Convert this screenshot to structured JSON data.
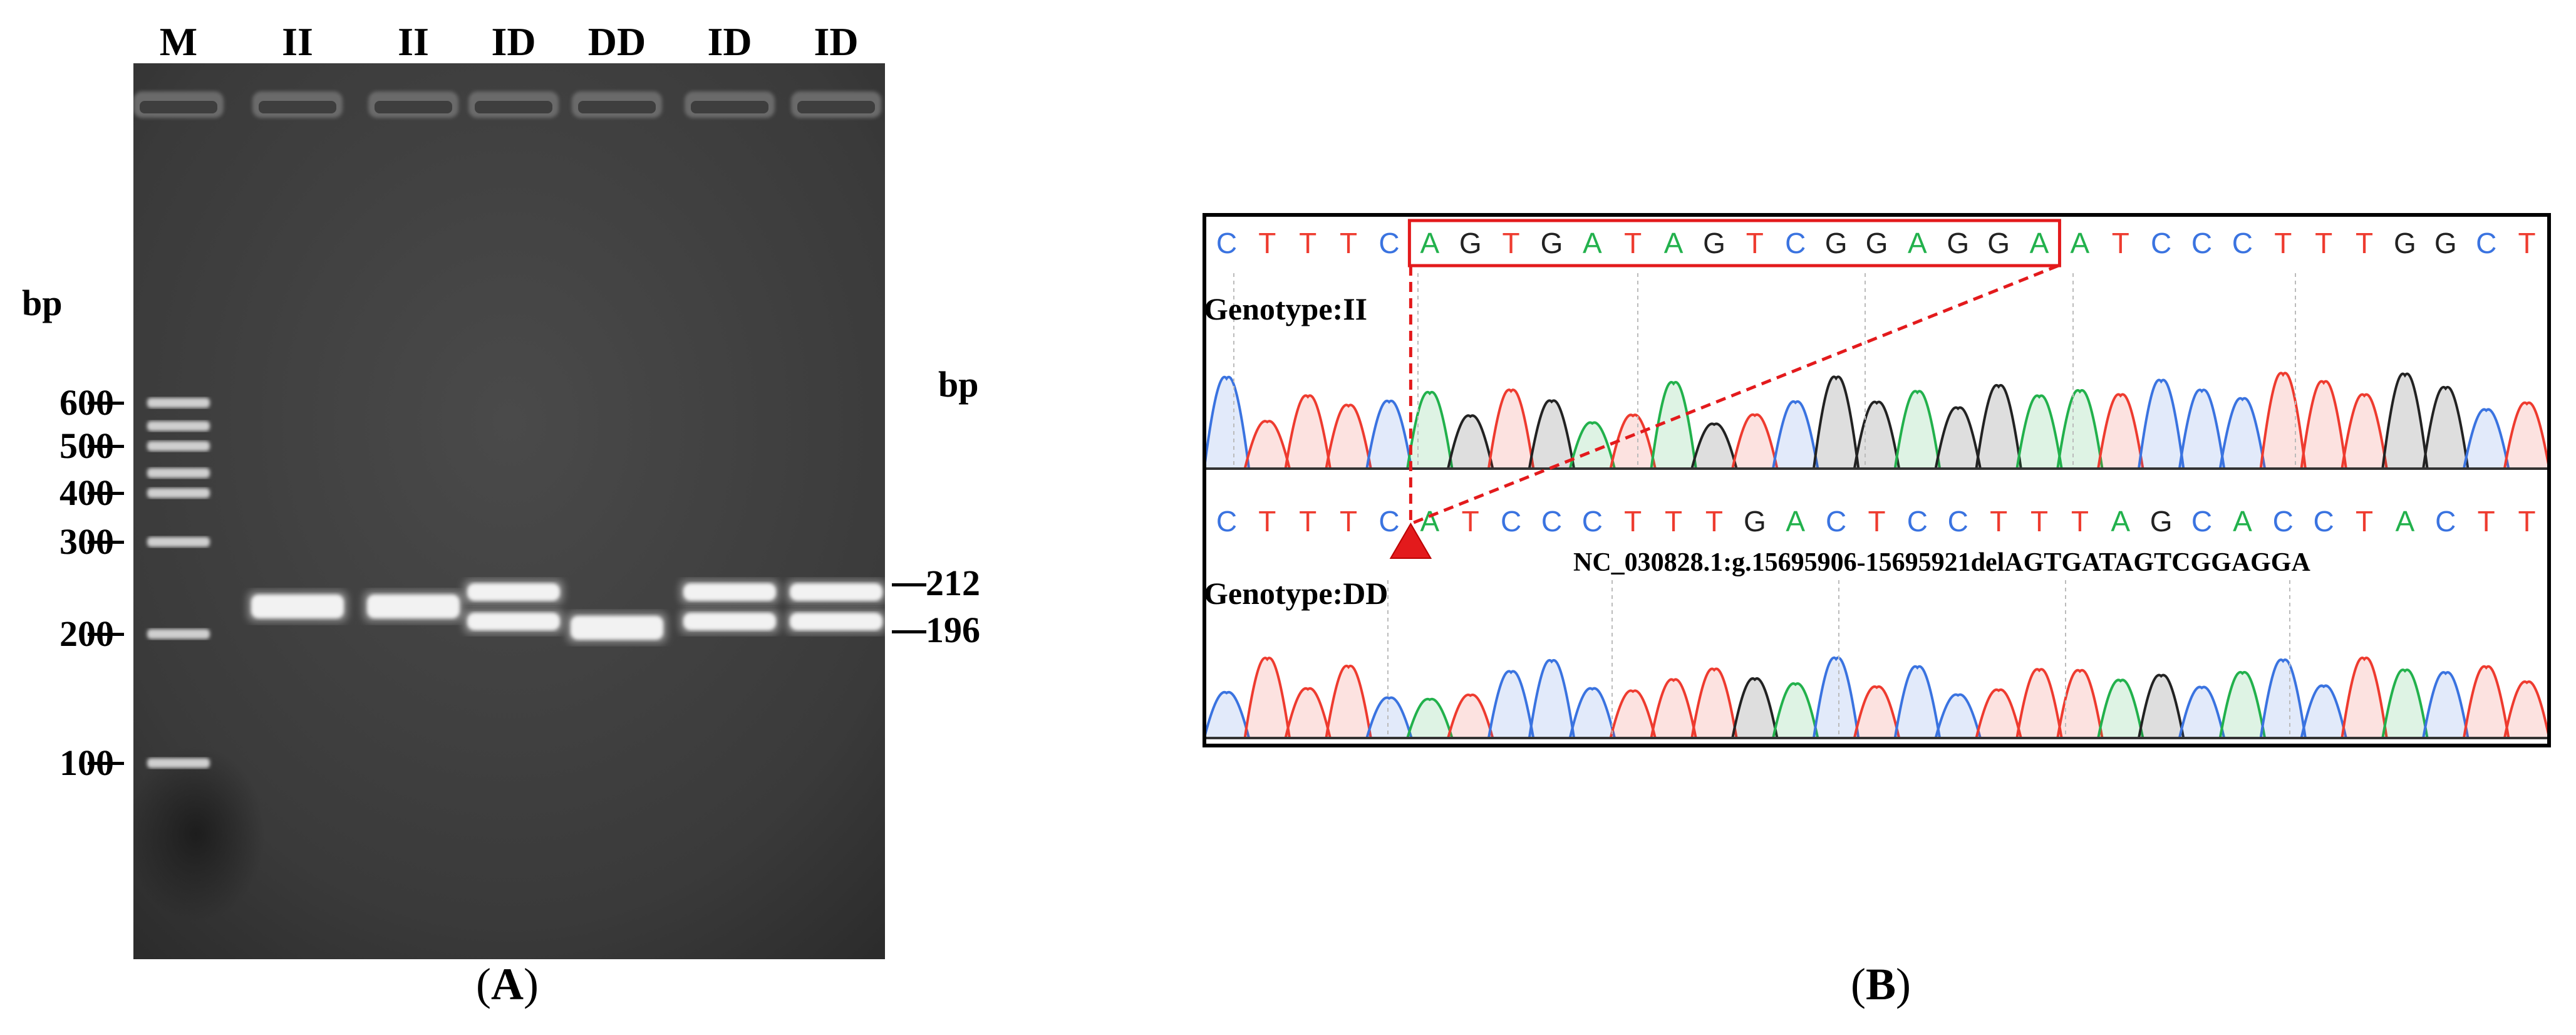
{
  "panel_a": {
    "caption_letter": "A",
    "left_unit": "bp",
    "right_unit": "bp",
    "lanes": [
      "M",
      "II",
      "II",
      "ID",
      "DD",
      "ID",
      "ID"
    ],
    "marker_sizes": [
      "600",
      "500",
      "400",
      "300",
      "200",
      "100"
    ],
    "band_sizes": [
      "212",
      "196"
    ],
    "band_pattern": [
      {
        "lane": "II",
        "bands": [
          "212"
        ]
      },
      {
        "lane": "II",
        "bands": [
          "212"
        ]
      },
      {
        "lane": "ID",
        "bands": [
          "212",
          "196"
        ]
      },
      {
        "lane": "DD",
        "bands": [
          "196"
        ]
      },
      {
        "lane": "ID",
        "bands": [
          "212",
          "196"
        ]
      },
      {
        "lane": "ID",
        "bands": [
          "212",
          "196"
        ]
      }
    ]
  },
  "panel_b": {
    "caption_letter": "B",
    "top_genotype": "Genotype:II",
    "bottom_genotype": "Genotype:DD",
    "variant_label": "NC_030828.1:g.15695906-15695921delAGTGATAGTCGGAGGA",
    "top_sequence": [
      "C",
      "T",
      "T",
      "T",
      "C",
      "A",
      "G",
      "T",
      "G",
      "A",
      "T",
      "A",
      "G",
      "T",
      "C",
      "G",
      "G",
      "A",
      "G",
      "G",
      "A",
      "A",
      "T",
      "C",
      "C",
      "C",
      "T",
      "T",
      "T",
      "G",
      "G",
      "C",
      "T"
    ],
    "bottom_sequence": [
      "C",
      "T",
      "T",
      "T",
      "C",
      "A",
      "T",
      "C",
      "C",
      "C",
      "T",
      "T",
      "T",
      "G",
      "A",
      "C",
      "T",
      "C",
      "C",
      "T",
      "T",
      "T",
      "A",
      "G",
      "C",
      "A",
      "C",
      "C",
      "T",
      "A",
      "C",
      "T",
      "T"
    ],
    "deleted_range_top": {
      "start_index": 5,
      "end_index": 20
    },
    "base_colors": {
      "A": "#22b14c",
      "C": "#3a73e0",
      "G": "#222222",
      "T": "#ee3b2f"
    },
    "highlight_color": "#e31a1c"
  }
}
